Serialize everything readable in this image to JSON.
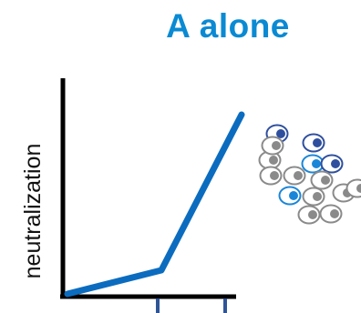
{
  "title": "A alone",
  "ylabel": "neutralization",
  "colors": {
    "title": "#0a8ad3",
    "line": "#0b6cbf",
    "axis": "#000000",
    "tick": "#2f5597",
    "cell_outline": "#8a8a8a",
    "cell_gray": "#8a8a8a",
    "cell_dark_blue": "#2f4f9e",
    "cell_bright_blue": "#1a86d8"
  },
  "x_ticks": 2,
  "line": {
    "shape": "piecewise-linear",
    "segments": 2,
    "description_of_trend": "shallow rise then steep rise"
  },
  "cell_cluster": {
    "cells": [
      {
        "color": "dark_blue"
      },
      {
        "color": "dark_blue"
      },
      {
        "color": "gray"
      },
      {
        "color": "bright_blue"
      },
      {
        "color": "dark_blue"
      },
      {
        "color": "gray"
      },
      {
        "color": "gray"
      },
      {
        "color": "gray"
      },
      {
        "color": "bright_blue"
      },
      {
        "color": "gray"
      },
      {
        "color": "gray"
      },
      {
        "color": "gray"
      },
      {
        "color": "gray"
      },
      {
        "color": "gray"
      },
      {
        "color": "gray"
      }
    ]
  }
}
